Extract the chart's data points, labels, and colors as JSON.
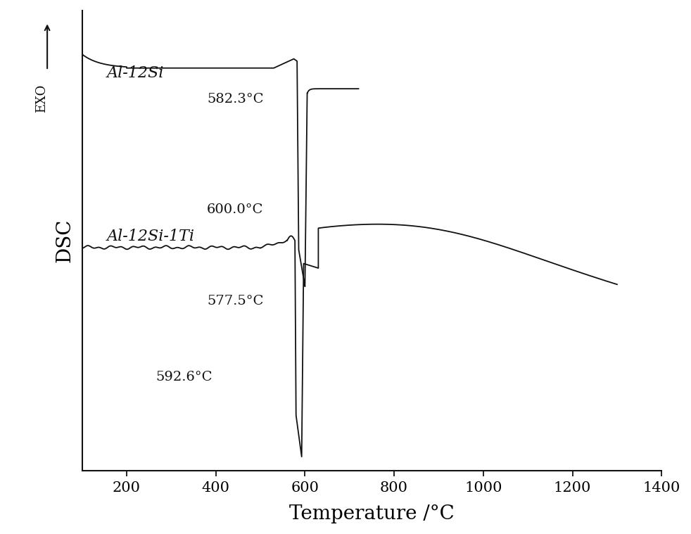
{
  "xlabel": "Temperature /°C",
  "ylabel": "DSC",
  "xlim": [
    100,
    1400
  ],
  "ylim": [
    0,
    1
  ],
  "xticks": [
    200,
    400,
    600,
    800,
    1000,
    1200,
    1400
  ],
  "label1": "Al-12Si",
  "label2": "Al-12Si-1Ti",
  "ann1_text1": "582.3°C",
  "ann1_text2": "600.0°C",
  "ann2_text1": "577.5°C",
  "ann2_text2": "592.6°C",
  "line_color": "#111111",
  "background": "#ffffff",
  "xlabel_fontsize": 20,
  "ylabel_fontsize": 20,
  "tick_fontsize": 15,
  "ann_fontsize": 14,
  "label_fontsize": 16,
  "exo_fontsize": 13
}
